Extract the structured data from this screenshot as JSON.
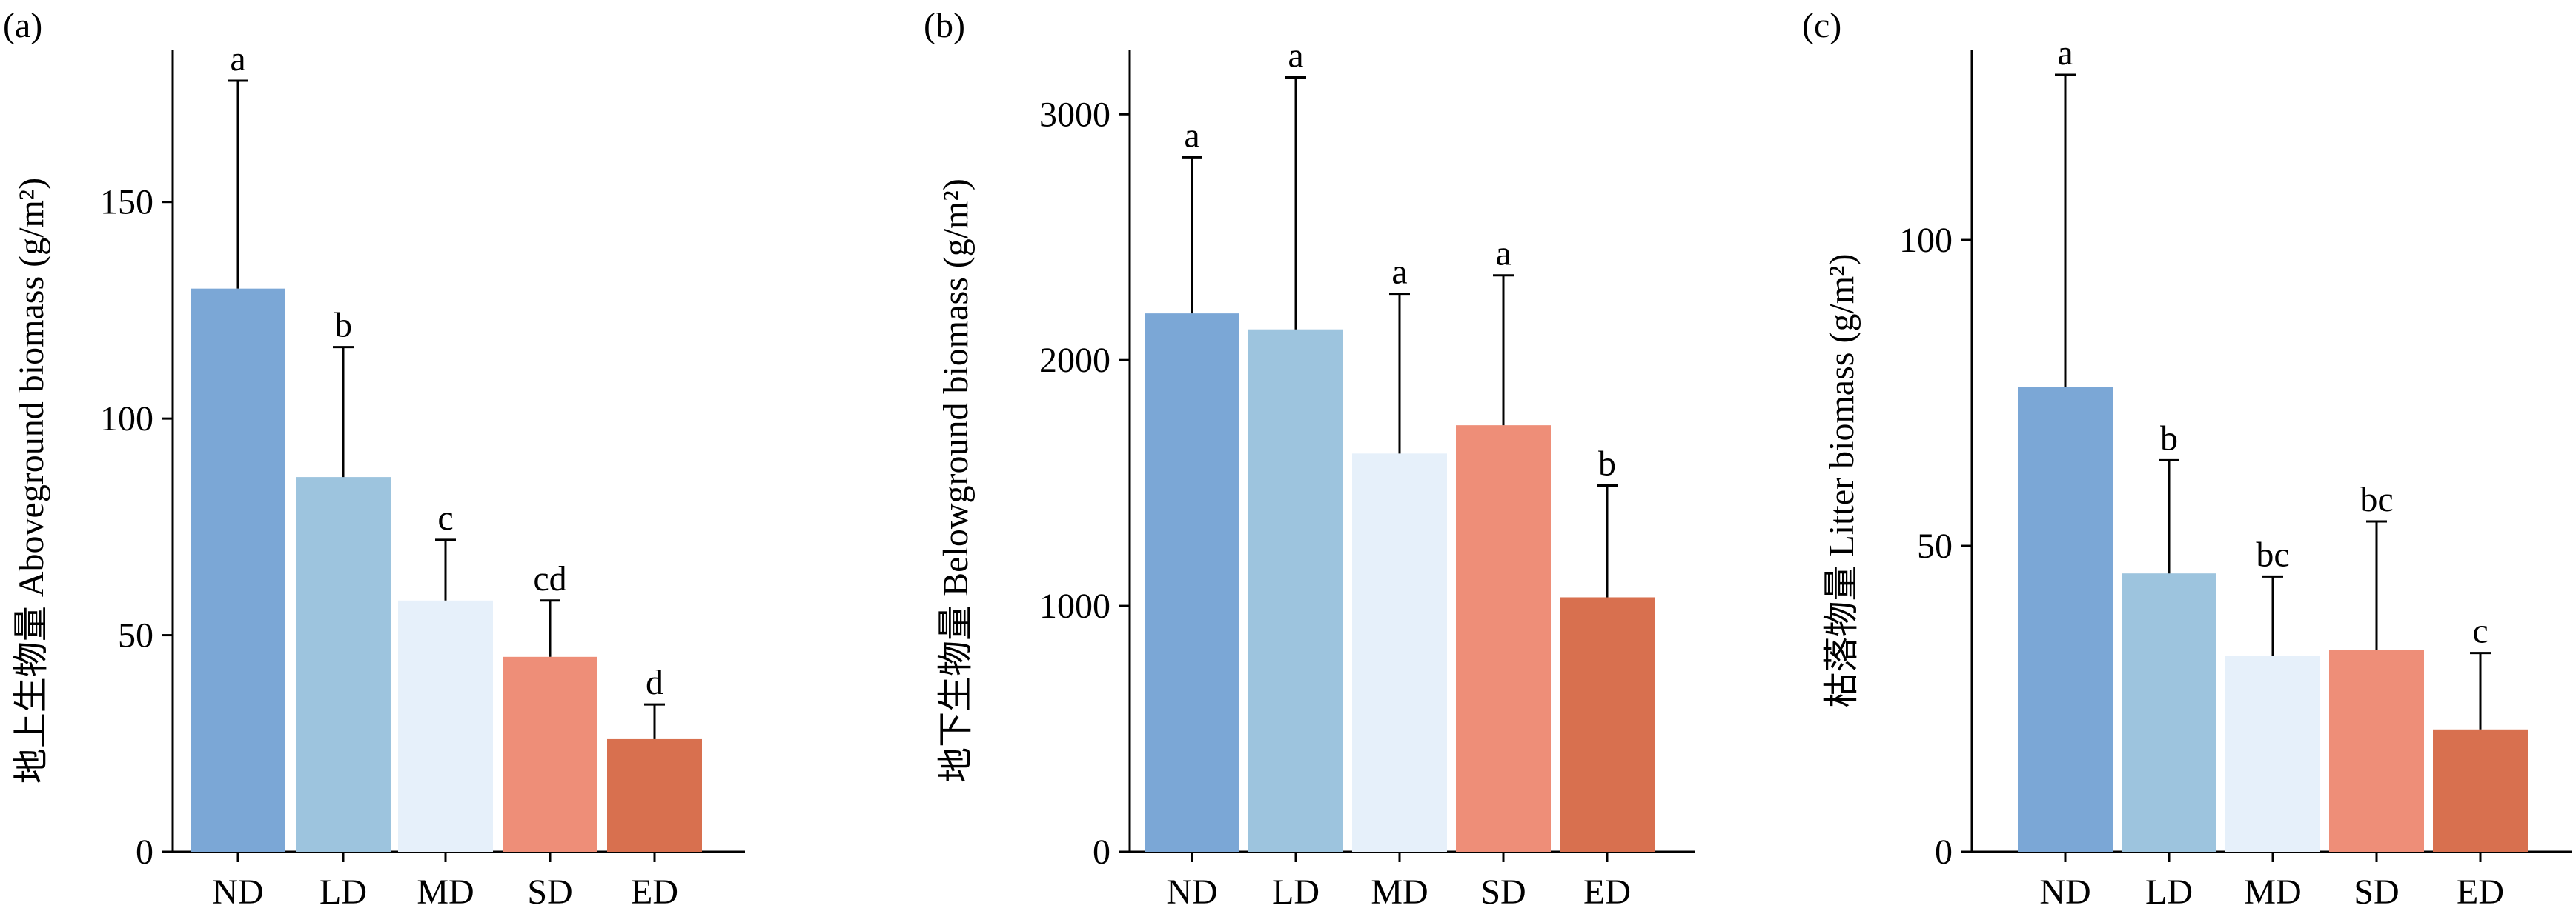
{
  "colors": {
    "ND": "#7BA7D6",
    "LD": "#9DC4DE",
    "MD": "#E6F0FA",
    "SD": "#EE8E78",
    "ED": "#D8704F"
  },
  "chart_data": [
    {
      "type": "bar",
      "panel": "(a)",
      "title": "",
      "ylabel": "地上生物量 Aboveground biomass (g/m²)",
      "xlabel": "",
      "categories": [
        "ND",
        "LD",
        "MD",
        "SD",
        "ED"
      ],
      "values": [
        130,
        86.5,
        58,
        45,
        26
      ],
      "errors": [
        48,
        30,
        14,
        13,
        8
      ],
      "letters": [
        "a",
        "b",
        "c",
        "cd",
        "d"
      ],
      "ylim": [
        0,
        185
      ],
      "yticks": [
        0,
        50,
        100,
        150
      ],
      "grid": false
    },
    {
      "type": "bar",
      "panel": "(b)",
      "title": "",
      "ylabel": "地下生物量 Belowground biomass (g/m²)",
      "xlabel": "",
      "categories": [
        "ND",
        "LD",
        "MD",
        "SD",
        "ED"
      ],
      "values": [
        2190,
        2125,
        1620,
        1735,
        1035
      ],
      "errors": [
        635,
        1025,
        650,
        610,
        455
      ],
      "letters": [
        "a",
        "a",
        "a",
        "a",
        "b"
      ],
      "ylim": [
        0,
        3260
      ],
      "yticks": [
        0,
        1000,
        2000,
        3000
      ],
      "grid": false
    },
    {
      "type": "bar",
      "panel": "(c)",
      "title": "",
      "ylabel": "枯落物量 Litter biomass (g/m²)",
      "xlabel": "",
      "categories": [
        "ND",
        "LD",
        "MD",
        "SD",
        "ED"
      ],
      "values": [
        76,
        45.5,
        32,
        33,
        20
      ],
      "errors": [
        51,
        18.5,
        13,
        21,
        12.5
      ],
      "letters": [
        "a",
        "b",
        "bc",
        "bc",
        "c"
      ],
      "ylim": [
        0,
        131
      ],
      "yticks": [
        0,
        50,
        100
      ],
      "grid": false
    }
  ]
}
